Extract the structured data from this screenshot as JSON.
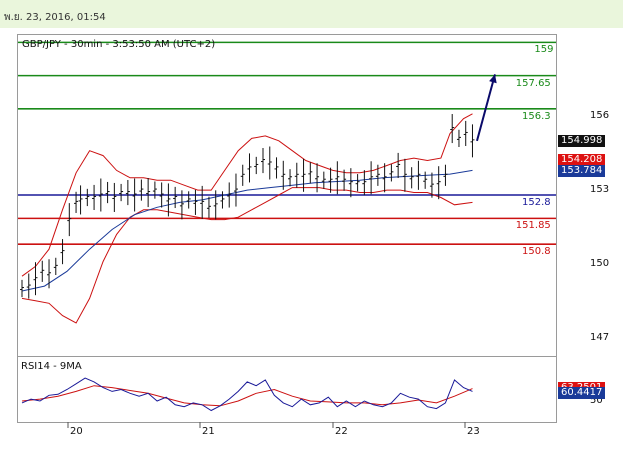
{
  "header": {
    "date_text": "พ.ย. 23, 2016, 01:54"
  },
  "chart_data": {
    "type": "line",
    "title": "GBP/JPY - 30min - 3:53:50 AM (UTC+2)",
    "x_ticks": [
      "20",
      "21",
      "22",
      "23"
    ],
    "y_ticks": [
      147,
      150,
      153,
      156
    ],
    "ylim": [
      146.3,
      159.3
    ],
    "levels": [
      {
        "value": 159,
        "label": "159",
        "color": "#1a8a1a"
      },
      {
        "value": 157.65,
        "label": "157.65",
        "color": "#1a8a1a"
      },
      {
        "value": 156.3,
        "label": "156.3",
        "color": "#1a8a1a"
      },
      {
        "value": 152.8,
        "label": "152.8",
        "color": "#1a1a99"
      },
      {
        "value": 151.85,
        "label": "151.85",
        "color": "#cc1111"
      },
      {
        "value": 150.8,
        "label": "150.8",
        "color": "#cc1111"
      }
    ],
    "price_tags": [
      {
        "value": 154.998,
        "label": "154.998",
        "color": "#111111"
      },
      {
        "value": 154.208,
        "label": "154.208",
        "color": "#dd1111"
      },
      {
        "value": 153.784,
        "label": "153.784",
        "color": "#1a3a99"
      }
    ],
    "price_series": [
      [
        0,
        149.0
      ],
      [
        3,
        149.1
      ],
      [
        6,
        149.4
      ],
      [
        9,
        149.7
      ],
      [
        12,
        149.6
      ],
      [
        15,
        149.9
      ],
      [
        18,
        150.5
      ],
      [
        21,
        151.8
      ],
      [
        24,
        152.5
      ],
      [
        26,
        152.6
      ],
      [
        29,
        152.7
      ],
      [
        32,
        152.7
      ],
      [
        35,
        152.8
      ],
      [
        38,
        152.9
      ],
      [
        41,
        152.7
      ],
      [
        44,
        152.9
      ],
      [
        47,
        152.9
      ],
      [
        50,
        152.8
      ],
      [
        53,
        153.0
      ],
      [
        56,
        152.9
      ],
      [
        59,
        153.0
      ],
      [
        62,
        152.8
      ],
      [
        65,
        152.6
      ],
      [
        68,
        152.7
      ],
      [
        71,
        152.4
      ],
      [
        74,
        152.6
      ],
      [
        77,
        152.5
      ],
      [
        80,
        152.5
      ],
      [
        83,
        152.3
      ],
      [
        86,
        152.4
      ],
      [
        89,
        152.6
      ],
      [
        92,
        152.8
      ],
      [
        95,
        153.0
      ],
      [
        98,
        153.6
      ],
      [
        101,
        153.9
      ],
      [
        104,
        154.0
      ],
      [
        107,
        154.2
      ],
      [
        110,
        154.1
      ],
      [
        113,
        153.9
      ],
      [
        116,
        153.6
      ],
      [
        119,
        153.5
      ],
      [
        122,
        153.6
      ],
      [
        125,
        153.6
      ],
      [
        128,
        153.7
      ],
      [
        131,
        153.5
      ],
      [
        134,
        153.4
      ],
      [
        137,
        153.4
      ],
      [
        140,
        153.5
      ],
      [
        143,
        153.4
      ],
      [
        146,
        153.3
      ],
      [
        149,
        153.3
      ],
      [
        152,
        153.3
      ],
      [
        155,
        153.5
      ],
      [
        158,
        153.6
      ],
      [
        161,
        153.5
      ],
      [
        164,
        153.7
      ],
      [
        167,
        154.0
      ],
      [
        170,
        153.6
      ],
      [
        173,
        153.5
      ],
      [
        176,
        153.6
      ],
      [
        179,
        153.4
      ],
      [
        182,
        153.2
      ],
      [
        185,
        153.3
      ],
      [
        188,
        153.6
      ],
      [
        191,
        155.5
      ],
      [
        194,
        155.1
      ],
      [
        197,
        155.3
      ],
      [
        200,
        155.0
      ]
    ],
    "ma_series": [
      [
        0,
        148.9
      ],
      [
        10,
        149.1
      ],
      [
        20,
        149.7
      ],
      [
        30,
        150.6
      ],
      [
        40,
        151.4
      ],
      [
        50,
        152.0
      ],
      [
        60,
        152.3
      ],
      [
        70,
        152.5
      ],
      [
        80,
        152.6
      ],
      [
        90,
        152.8
      ],
      [
        100,
        153.0
      ],
      [
        110,
        153.1
      ],
      [
        120,
        153.2
      ],
      [
        130,
        153.3
      ],
      [
        140,
        153.35
      ],
      [
        150,
        153.4
      ],
      [
        160,
        153.5
      ],
      [
        170,
        153.55
      ],
      [
        180,
        153.6
      ],
      [
        190,
        153.65
      ],
      [
        200,
        153.8
      ]
    ],
    "bb_upper": [
      [
        0,
        149.5
      ],
      [
        6,
        149.9
      ],
      [
        12,
        150.6
      ],
      [
        18,
        152.2
      ],
      [
        24,
        153.7
      ],
      [
        30,
        154.6
      ],
      [
        36,
        154.4
      ],
      [
        42,
        153.8
      ],
      [
        48,
        153.5
      ],
      [
        54,
        153.5
      ],
      [
        60,
        153.4
      ],
      [
        66,
        153.4
      ],
      [
        72,
        153.2
      ],
      [
        78,
        153.0
      ],
      [
        84,
        153.0
      ],
      [
        90,
        153.8
      ],
      [
        96,
        154.6
      ],
      [
        102,
        155.1
      ],
      [
        108,
        155.2
      ],
      [
        114,
        155.0
      ],
      [
        120,
        154.6
      ],
      [
        126,
        154.2
      ],
      [
        132,
        154.0
      ],
      [
        138,
        153.8
      ],
      [
        144,
        153.7
      ],
      [
        150,
        153.7
      ],
      [
        156,
        153.8
      ],
      [
        162,
        154.0
      ],
      [
        168,
        154.2
      ],
      [
        174,
        154.3
      ],
      [
        180,
        154.2
      ],
      [
        186,
        154.3
      ],
      [
        190,
        155.3
      ],
      [
        196,
        155.9
      ],
      [
        200,
        156.1
      ]
    ],
    "bb_lower": [
      [
        0,
        148.6
      ],
      [
        6,
        148.5
      ],
      [
        12,
        148.4
      ],
      [
        18,
        147.9
      ],
      [
        24,
        147.6
      ],
      [
        30,
        148.6
      ],
      [
        36,
        150.1
      ],
      [
        42,
        151.2
      ],
      [
        48,
        151.9
      ],
      [
        54,
        152.2
      ],
      [
        60,
        152.2
      ],
      [
        66,
        152.1
      ],
      [
        72,
        152.0
      ],
      [
        78,
        151.9
      ],
      [
        84,
        151.8
      ],
      [
        90,
        151.8
      ],
      [
        96,
        151.9
      ],
      [
        102,
        152.2
      ],
      [
        108,
        152.5
      ],
      [
        114,
        152.8
      ],
      [
        120,
        153.1
      ],
      [
        126,
        153.1
      ],
      [
        132,
        153.1
      ],
      [
        138,
        153.0
      ],
      [
        144,
        153.0
      ],
      [
        150,
        152.9
      ],
      [
        156,
        152.9
      ],
      [
        162,
        153.0
      ],
      [
        168,
        153.0
      ],
      [
        174,
        152.9
      ],
      [
        180,
        152.9
      ],
      [
        186,
        152.7
      ],
      [
        192,
        152.4
      ],
      [
        200,
        152.5
      ]
    ],
    "projection": [
      [
        202,
        155.0
      ],
      [
        210,
        157.7
      ]
    ],
    "rsi": {
      "title": "RSI14 - 9MA",
      "ylim": [
        28,
        95
      ],
      "y_ticks": [
        50
      ],
      "value_tags": [
        {
          "value": 63.2501,
          "label": "63.2501",
          "color": "#dd1111"
        },
        {
          "value": 60.4417,
          "label": "60.4417",
          "color": "#1a3a99"
        }
      ],
      "rsi_series": [
        [
          0,
          48
        ],
        [
          4,
          52
        ],
        [
          8,
          50
        ],
        [
          12,
          56
        ],
        [
          16,
          57
        ],
        [
          20,
          62
        ],
        [
          24,
          68
        ],
        [
          28,
          74
        ],
        [
          32,
          70
        ],
        [
          36,
          64
        ],
        [
          40,
          60
        ],
        [
          44,
          62
        ],
        [
          48,
          58
        ],
        [
          52,
          55
        ],
        [
          56,
          58
        ],
        [
          60,
          50
        ],
        [
          64,
          54
        ],
        [
          68,
          46
        ],
        [
          72,
          44
        ],
        [
          76,
          48
        ],
        [
          80,
          46
        ],
        [
          84,
          40
        ],
        [
          88,
          45
        ],
        [
          92,
          52
        ],
        [
          96,
          60
        ],
        [
          100,
          70
        ],
        [
          104,
          66
        ],
        [
          108,
          72
        ],
        [
          112,
          56
        ],
        [
          116,
          48
        ],
        [
          120,
          44
        ],
        [
          124,
          52
        ],
        [
          128,
          46
        ],
        [
          132,
          48
        ],
        [
          136,
          54
        ],
        [
          140,
          44
        ],
        [
          144,
          50
        ],
        [
          148,
          44
        ],
        [
          152,
          50
        ],
        [
          156,
          46
        ],
        [
          160,
          44
        ],
        [
          164,
          48
        ],
        [
          168,
          58
        ],
        [
          172,
          54
        ],
        [
          176,
          52
        ],
        [
          180,
          44
        ],
        [
          184,
          42
        ],
        [
          188,
          48
        ],
        [
          192,
          72
        ],
        [
          196,
          64
        ],
        [
          200,
          60
        ]
      ],
      "rsi_ma": [
        [
          0,
          50
        ],
        [
          8,
          52
        ],
        [
          16,
          55
        ],
        [
          24,
          60
        ],
        [
          32,
          66
        ],
        [
          40,
          64
        ],
        [
          48,
          61
        ],
        [
          56,
          58
        ],
        [
          64,
          53
        ],
        [
          72,
          48
        ],
        [
          80,
          46
        ],
        [
          88,
          45
        ],
        [
          96,
          50
        ],
        [
          104,
          58
        ],
        [
          112,
          62
        ],
        [
          120,
          55
        ],
        [
          128,
          50
        ],
        [
          136,
          49
        ],
        [
          144,
          48
        ],
        [
          152,
          48
        ],
        [
          160,
          46
        ],
        [
          168,
          48
        ],
        [
          176,
          51
        ],
        [
          184,
          48
        ],
        [
          192,
          55
        ],
        [
          200,
          63
        ]
      ]
    }
  }
}
